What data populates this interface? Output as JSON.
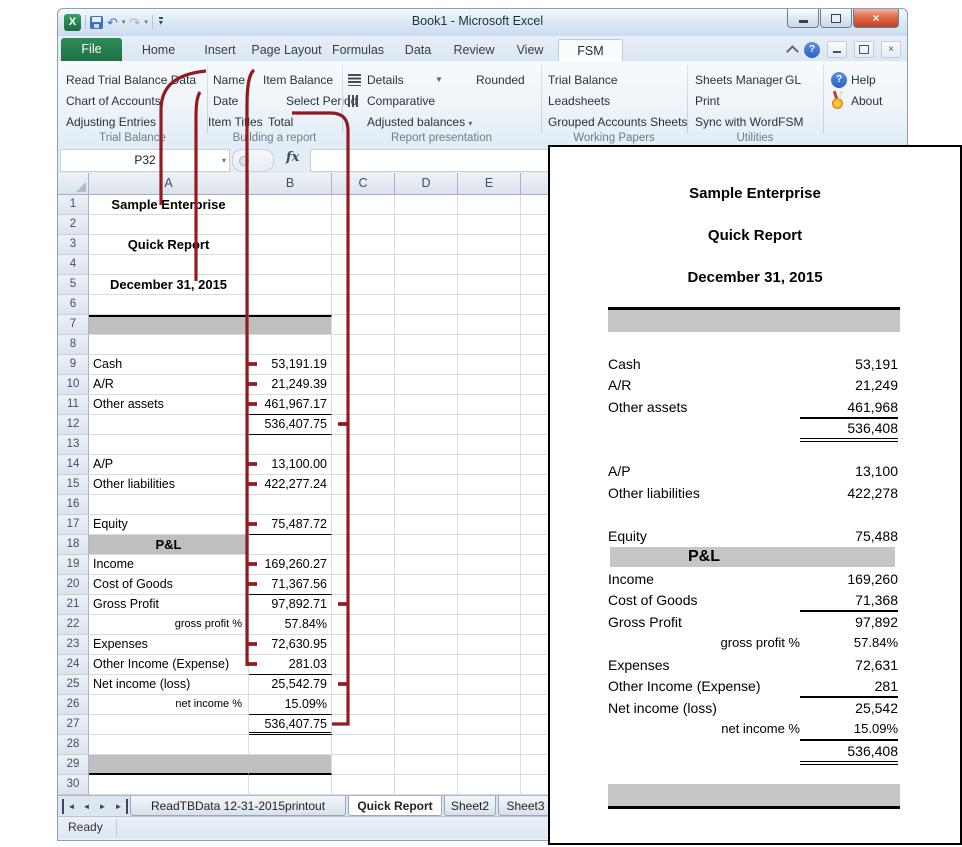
{
  "window": {
    "title": "Book1  -  Microsoft Excel"
  },
  "tabs": [
    "File",
    "Home",
    "Insert",
    "Page Layout",
    "Formulas",
    "Data",
    "Review",
    "View",
    "FSM"
  ],
  "active_tab": "FSM",
  "icons": {
    "excel_logo_letter": "X",
    "undo": "↶",
    "redo": "↷",
    "dropdown": "▾",
    "combo_arrow": "▼",
    "help_qmark": "?",
    "close_x": "×",
    "nav_prev": "◄",
    "nav_next": "►"
  },
  "ribbon": {
    "groups": [
      {
        "label": "Trial Balance",
        "items": [
          "Read Trial Balance Data",
          "Chart of Accounts",
          "Adjusting Entries"
        ]
      },
      {
        "label": "Building a report",
        "col1": [
          "Name",
          "Date",
          "Item Titles"
        ],
        "col2": [
          "Item Balance",
          "Select Period",
          "Total"
        ]
      },
      {
        "label": "Report presentation",
        "details": "Details",
        "rounded": "Rounded",
        "comparative": "Comparative",
        "adjusted": "Adjusted balances"
      },
      {
        "label": "Working Papers",
        "items": [
          "Trial Balance",
          "Leadsheets",
          "Grouped Accounts Sheets"
        ]
      },
      {
        "label": "Utilities",
        "items": [
          "Sheets Manager",
          "GL",
          "Print",
          "Sync with WordFSM"
        ]
      },
      {
        "label": "",
        "help": "Help",
        "about": "About"
      }
    ]
  },
  "formula_bar": {
    "name_box": "P32",
    "fx_label": "fx"
  },
  "grid": {
    "columns": [
      "A",
      "B",
      "C",
      "D",
      "E"
    ],
    "rows": [
      {
        "n": 1,
        "a": "Sample Enterprise",
        "styleA": "title"
      },
      {
        "n": 2
      },
      {
        "n": 3,
        "a": "Quick Report",
        "styleA": "title"
      },
      {
        "n": 4
      },
      {
        "n": 5,
        "a": "December 31, 2015",
        "styleA": "title"
      },
      {
        "n": 6
      },
      {
        "n": 7,
        "band": true,
        "borderTop": true
      },
      {
        "n": 8
      },
      {
        "n": 9,
        "a": "Cash",
        "b": "53,191.19"
      },
      {
        "n": 10,
        "a": "A/R",
        "b": "21,249.39"
      },
      {
        "n": 11,
        "a": "Other assets",
        "b": "461,967.17",
        "bCls": "u"
      },
      {
        "n": 12,
        "b": "536,407.75",
        "bCls": "u"
      },
      {
        "n": 13
      },
      {
        "n": 14,
        "a": "A/P",
        "b": "13,100.00"
      },
      {
        "n": 15,
        "a": "Other liabilities",
        "b": "422,277.24"
      },
      {
        "n": 16
      },
      {
        "n": 17,
        "a": "Equity",
        "b": "75,487.72",
        "bCls": "u"
      },
      {
        "n": 18,
        "a": "P&L",
        "styleA": "pl-band"
      },
      {
        "n": 19,
        "a": "Income",
        "b": "169,260.27"
      },
      {
        "n": 20,
        "a": "Cost of Goods",
        "b": "71,367.56",
        "bCls": "u"
      },
      {
        "n": 21,
        "a": "Gross Profit",
        "b": "97,892.71"
      },
      {
        "n": 22,
        "a": "gross profit %",
        "b": "57.84%",
        "styleA": "pct"
      },
      {
        "n": 23,
        "a": "Expenses",
        "b": "72,630.95"
      },
      {
        "n": 24,
        "a": "Other Income (Expense)",
        "b": "281.03",
        "bCls": "u"
      },
      {
        "n": 25,
        "a": "Net income (loss)",
        "b": "25,542.79"
      },
      {
        "n": 26,
        "a": "net income %",
        "b": "15.09%",
        "styleA": "pct",
        "bCls": "u"
      },
      {
        "n": 27,
        "b": "536,407.75",
        "bCls": "dd2"
      },
      {
        "n": 28
      },
      {
        "n": 29,
        "band": true,
        "borderBottom": true
      },
      {
        "n": 30
      }
    ]
  },
  "sheet_tabs": {
    "tabs": [
      "ReadTBData 12-31-2015printout",
      "Quick Report",
      "Sheet2",
      "Sheet3"
    ],
    "active": "Quick Report"
  },
  "status": {
    "ready": "Ready"
  },
  "printout": {
    "titles": [
      "Sample Enterprise",
      "Quick Report",
      "December 31, 2015"
    ],
    "items": [
      {
        "t": "bandtop"
      },
      {
        "t": "gap"
      },
      {
        "t": "row",
        "l": "Cash",
        "v": "53,191"
      },
      {
        "t": "row",
        "l": "A/R",
        "v": "21,249"
      },
      {
        "t": "row",
        "l": "Other assets",
        "v": "461,968",
        "u": 1
      },
      {
        "t": "row",
        "l": "",
        "v": "536,408",
        "dd": 1
      },
      {
        "t": "gap"
      },
      {
        "t": "row",
        "l": "A/P",
        "v": "13,100"
      },
      {
        "t": "row",
        "l": "Other liabilities",
        "v": "422,278"
      },
      {
        "t": "gap"
      },
      {
        "t": "row",
        "l": "Equity",
        "v": "75,488"
      },
      {
        "t": "plband",
        "l": "P&L"
      },
      {
        "t": "row",
        "l": "Income",
        "v": "169,260"
      },
      {
        "t": "row",
        "l": "Cost of Goods",
        "v": "71,368",
        "u": 1
      },
      {
        "t": "row",
        "l": "Gross Profit",
        "v": "97,892"
      },
      {
        "t": "row",
        "l": "gross profit %",
        "v": "57.84%",
        "pct": 1
      },
      {
        "t": "row",
        "l": "Expenses",
        "v": "72,631"
      },
      {
        "t": "row",
        "l": "Other Income (Expense)",
        "v": "281",
        "u": 1
      },
      {
        "t": "row",
        "l": "Net income (loss)",
        "v": "25,542"
      },
      {
        "t": "row",
        "l": "net income %",
        "v": "15.09%",
        "pct": 1,
        "u": 1
      },
      {
        "t": "row",
        "l": "",
        "v": "536,408",
        "dd": 1
      },
      {
        "t": "gap"
      },
      {
        "t": "bandbottom"
      }
    ]
  },
  "colors": {
    "connector_red": "#931b1e",
    "band_gray": "#bfbfbf",
    "file_tab_green": "#1e7145"
  }
}
